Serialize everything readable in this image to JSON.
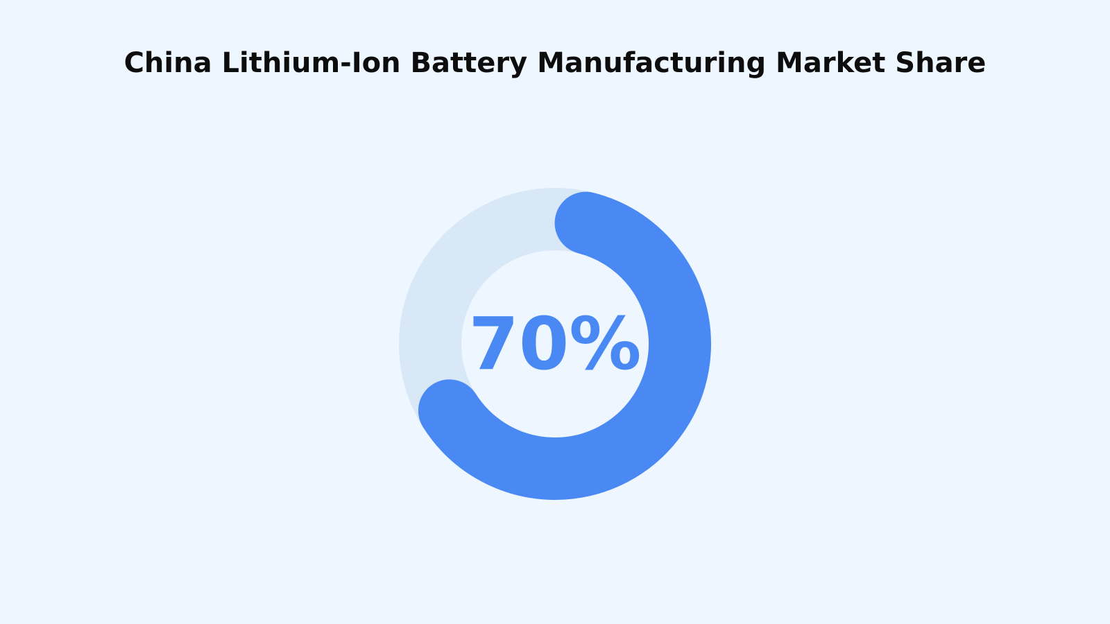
{
  "chart_data": {
    "type": "donut",
    "title": "China Lithium-Ion Battery Manufacturing Market Share",
    "values": [
      70
    ],
    "value_labels": [
      "70%"
    ],
    "ylim": [
      0,
      100
    ],
    "color": "#4a89f3",
    "track_color": "#d9e8f6"
  }
}
